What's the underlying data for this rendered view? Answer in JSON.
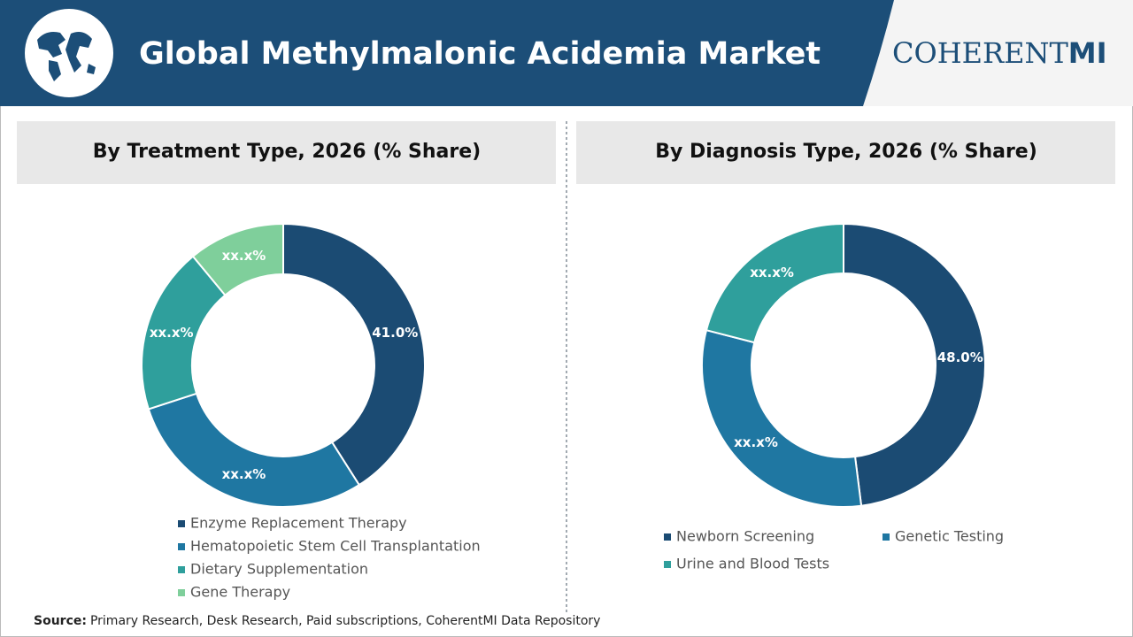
{
  "header": {
    "title": "Global Methylmalonic Acidemia Market",
    "brand_main": "COHERENT",
    "brand_accent": "MI"
  },
  "chart_data": [
    {
      "type": "donut",
      "title": "By Treatment Type, 2026 (% Share)",
      "categories": [
        "Enzyme Replacement Therapy",
        "Hematopoietic Stem Cell Transplantation",
        "Dietary Supplementation",
        "Gene Therapy"
      ],
      "values": [
        41,
        29,
        19,
        11
      ],
      "value_labels": [
        "41.0%",
        "xx.x%",
        "xx.x%",
        "xx.x%"
      ],
      "colors": [
        "#1b4b73",
        "#1f77a2",
        "#2f9f9c",
        "#7fcf9b"
      ]
    },
    {
      "type": "donut",
      "title": "By Diagnosis Type, 2026 (% Share)",
      "categories": [
        "Newborn Screening",
        "Genetic Testing",
        "Urine and Blood Tests"
      ],
      "values": [
        48,
        31,
        21
      ],
      "value_labels": [
        "48.0%",
        "xx.x%",
        "xx.x%"
      ],
      "colors": [
        "#1b4b73",
        "#1f77a2",
        "#2f9f9c"
      ]
    }
  ],
  "source": {
    "label": "Source:",
    "text": "Primary Research, Desk Research, Paid subscriptions, CoherentMI Data Repository"
  }
}
